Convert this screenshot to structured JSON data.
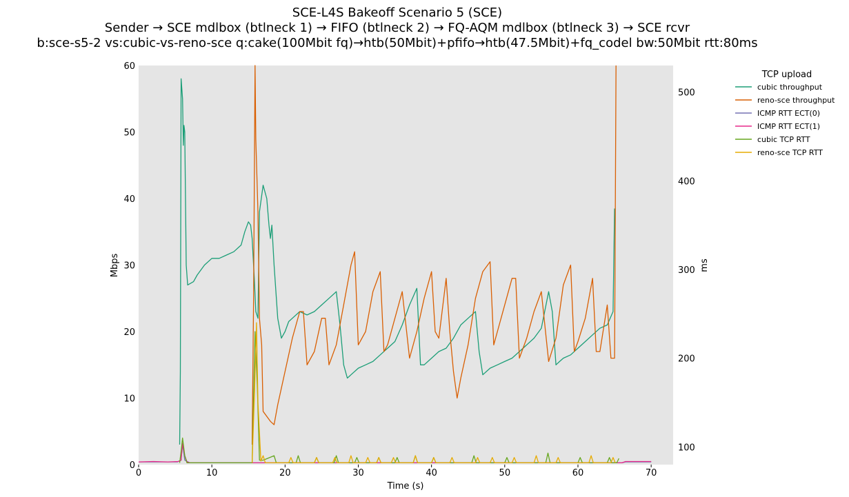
{
  "chart_data": {
    "type": "line",
    "title_lines": [
      "SCE-L4S Bakeoff Scenario 5 (SCE)",
      "Sender → SCE mdlbox (btlneck 1) → FIFO (btlneck 2) → FQ-AQM mdlbox (btlneck 3) → SCE rcvr",
      "b:sce-s5-2 vs:cubic-vs-reno-sce q:cake(100Mbit fq)→htb(50Mbit)+pfifo→htb(47.5Mbit)+fq_codel bw:50Mbit rtt:80ms"
    ],
    "xlabel": "Time (s)",
    "ylabel_left": "Mbps",
    "ylabel_right": "ms",
    "xlim": [
      0,
      73
    ],
    "ylim_left": [
      0,
      60
    ],
    "ylim_right": [
      80,
      530
    ],
    "x_ticks": [
      "0",
      "10",
      "20",
      "30",
      "40",
      "50",
      "60",
      "70"
    ],
    "y_ticks_left": [
      "0",
      "10",
      "20",
      "30",
      "40",
      "50",
      "60"
    ],
    "y_ticks_right": [
      "100",
      "200",
      "300",
      "400",
      "500"
    ],
    "grid": false,
    "legend": {
      "title": "TCP upload",
      "placement": "outside-right"
    },
    "series": [
      {
        "name": "cubic throughput",
        "axis": "left",
        "color": "#1b9e77",
        "points": [
          [
            5.6,
            3
          ],
          [
            5.7,
            14
          ],
          [
            5.8,
            58
          ],
          [
            6.0,
            55
          ],
          [
            6.1,
            48
          ],
          [
            6.2,
            51
          ],
          [
            6.3,
            50
          ],
          [
            6.5,
            30
          ],
          [
            6.7,
            27
          ],
          [
            7.5,
            27.5
          ],
          [
            8,
            28.5
          ],
          [
            9,
            30
          ],
          [
            10,
            31
          ],
          [
            11,
            31
          ],
          [
            12,
            31.5
          ],
          [
            13,
            32
          ],
          [
            14,
            33
          ],
          [
            14.5,
            35
          ],
          [
            15,
            36.5
          ],
          [
            15.3,
            36
          ],
          [
            15.5,
            34
          ],
          [
            15.8,
            28
          ],
          [
            16.0,
            23
          ],
          [
            16.3,
            22
          ],
          [
            16.5,
            38
          ],
          [
            17,
            42
          ],
          [
            17.5,
            40
          ],
          [
            17.8,
            36
          ],
          [
            18,
            34
          ],
          [
            18.2,
            36
          ],
          [
            18.5,
            30
          ],
          [
            19,
            22
          ],
          [
            19.5,
            19
          ],
          [
            20,
            20
          ],
          [
            20.5,
            21.5
          ],
          [
            21,
            22
          ],
          [
            22,
            23
          ],
          [
            23,
            22.5
          ],
          [
            24,
            23
          ],
          [
            25,
            24
          ],
          [
            26,
            25
          ],
          [
            27,
            26
          ],
          [
            27.5,
            21
          ],
          [
            28,
            15
          ],
          [
            28.5,
            13
          ],
          [
            29,
            13.5
          ],
          [
            30,
            14.5
          ],
          [
            31,
            15
          ],
          [
            32,
            15.5
          ],
          [
            33,
            16.5
          ],
          [
            34,
            17.5
          ],
          [
            35,
            18.5
          ],
          [
            36,
            21
          ],
          [
            37,
            24
          ],
          [
            38,
            26.5
          ],
          [
            38.5,
            15
          ],
          [
            39,
            15
          ],
          [
            40,
            16
          ],
          [
            41,
            17
          ],
          [
            42,
            17.5
          ],
          [
            43,
            19
          ],
          [
            44,
            21
          ],
          [
            45,
            22
          ],
          [
            46,
            23
          ],
          [
            46.5,
            17
          ],
          [
            47,
            13.5
          ],
          [
            48,
            14.5
          ],
          [
            49,
            15
          ],
          [
            50,
            15.5
          ],
          [
            51,
            16
          ],
          [
            52,
            17
          ],
          [
            53,
            18
          ],
          [
            54,
            19
          ],
          [
            55,
            20.5
          ],
          [
            56,
            26
          ],
          [
            56.5,
            23
          ],
          [
            57,
            15
          ],
          [
            57.5,
            15.5
          ],
          [
            58,
            16
          ],
          [
            59,
            16.5
          ],
          [
            60,
            17.5
          ],
          [
            61,
            18.5
          ],
          [
            62,
            19.5
          ],
          [
            63,
            20.5
          ],
          [
            64,
            21
          ],
          [
            64.8,
            23
          ],
          [
            65.0,
            38.5
          ]
        ]
      },
      {
        "name": "reno-sce throughput",
        "axis": "left",
        "color": "#d95f02",
        "points": [
          [
            15.5,
            3
          ],
          [
            15.7,
            25
          ],
          [
            15.9,
            60
          ],
          [
            16.0,
            49
          ],
          [
            16.3,
            38
          ],
          [
            16.5,
            22
          ],
          [
            16.8,
            18
          ],
          [
            17,
            8
          ],
          [
            18,
            6.5
          ],
          [
            18.5,
            6
          ],
          [
            19,
            9
          ],
          [
            20,
            14
          ],
          [
            21,
            19
          ],
          [
            22,
            23
          ],
          [
            22.5,
            23
          ],
          [
            23,
            15
          ],
          [
            24,
            17
          ],
          [
            25,
            22
          ],
          [
            25.5,
            22
          ],
          [
            26,
            15
          ],
          [
            27,
            18
          ],
          [
            28,
            24
          ],
          [
            29,
            30
          ],
          [
            29.5,
            32
          ],
          [
            30,
            18
          ],
          [
            31,
            20
          ],
          [
            32,
            26
          ],
          [
            33,
            29
          ],
          [
            33.5,
            17
          ],
          [
            34,
            18
          ],
          [
            35,
            22
          ],
          [
            36,
            26
          ],
          [
            37,
            16
          ],
          [
            38,
            20
          ],
          [
            39,
            25
          ],
          [
            40,
            29
          ],
          [
            40.5,
            20
          ],
          [
            41,
            19
          ],
          [
            42,
            28
          ],
          [
            42.5,
            20
          ],
          [
            43,
            14
          ],
          [
            43.5,
            10
          ],
          [
            44,
            13
          ],
          [
            45,
            18
          ],
          [
            46,
            25
          ],
          [
            47,
            29
          ],
          [
            48,
            30.5
          ],
          [
            48.5,
            18
          ],
          [
            49,
            20
          ],
          [
            50,
            24
          ],
          [
            51,
            28
          ],
          [
            51.5,
            28
          ],
          [
            52,
            16
          ],
          [
            53,
            19
          ],
          [
            54,
            23
          ],
          [
            55,
            26
          ],
          [
            56,
            15.5
          ],
          [
            57,
            19
          ],
          [
            58,
            27
          ],
          [
            59,
            30
          ],
          [
            59.5,
            17
          ],
          [
            60,
            18.5
          ],
          [
            61,
            22
          ],
          [
            62,
            28
          ],
          [
            62.5,
            17
          ],
          [
            63,
            17
          ],
          [
            64,
            24
          ],
          [
            64.5,
            16
          ],
          [
            65.0,
            16
          ],
          [
            65.2,
            60
          ]
        ]
      },
      {
        "name": "ICMP RTT ECT(0)",
        "axis": "right",
        "color": "#7570b3",
        "points": [
          [
            0,
            83
          ],
          [
            5.3,
            83
          ],
          [
            5.8,
            85
          ],
          [
            6.0,
            103
          ],
          [
            6.3,
            85
          ],
          [
            7,
            82
          ],
          [
            15.5,
            82
          ],
          [
            16,
            82
          ],
          [
            20,
            82
          ],
          [
            30,
            82
          ],
          [
            40,
            82
          ],
          [
            50,
            82
          ],
          [
            60,
            82
          ],
          [
            66,
            82
          ],
          [
            66.5,
            83
          ],
          [
            70,
            83
          ]
        ]
      },
      {
        "name": "ICMP RTT ECT(1)",
        "axis": "right",
        "color": "#e7298a",
        "points": [
          [
            0,
            83
          ],
          [
            2,
            83.5
          ],
          [
            4,
            83
          ],
          [
            5.4,
            83.5
          ],
          [
            5.8,
            85
          ],
          [
            6.0,
            104
          ],
          [
            6.3,
            90
          ],
          [
            6.6,
            83
          ],
          [
            7,
            82
          ],
          [
            10,
            82
          ],
          [
            15.5,
            82
          ],
          [
            16,
            82
          ],
          [
            20,
            82
          ],
          [
            30,
            82
          ],
          [
            40,
            82
          ],
          [
            50,
            82
          ],
          [
            60,
            82
          ],
          [
            66,
            82
          ],
          [
            66.5,
            83.5
          ],
          [
            70,
            83.5
          ]
        ]
      },
      {
        "name": "cubic TCP RTT",
        "axis": "right",
        "color": "#66a61e",
        "points": [
          [
            5.6,
            82
          ],
          [
            5.8,
            95
          ],
          [
            6.0,
            110
          ],
          [
            6.3,
            90
          ],
          [
            6.6,
            82
          ],
          [
            15.5,
            82
          ],
          [
            15.9,
            230
          ],
          [
            16.2,
            170
          ],
          [
            16.5,
            85
          ],
          [
            17,
            85
          ],
          [
            18.5,
            90
          ],
          [
            18.8,
            82
          ],
          [
            21.5,
            82
          ],
          [
            21.8,
            90
          ],
          [
            22.1,
            82
          ],
          [
            24,
            82
          ],
          [
            24.3,
            88
          ],
          [
            24.6,
            82
          ],
          [
            26.7,
            82
          ],
          [
            27,
            90
          ],
          [
            27.3,
            82
          ],
          [
            29.5,
            82
          ],
          [
            29.8,
            88
          ],
          [
            30.1,
            82
          ],
          [
            32.5,
            82
          ],
          [
            32.8,
            88
          ],
          [
            33.1,
            82
          ],
          [
            35,
            82
          ],
          [
            35.3,
            88
          ],
          [
            35.6,
            82
          ],
          [
            37.5,
            82
          ],
          [
            37.8,
            90
          ],
          [
            38.1,
            82
          ],
          [
            40,
            82
          ],
          [
            40.3,
            88
          ],
          [
            40.6,
            82
          ],
          [
            45.5,
            82
          ],
          [
            45.8,
            90
          ],
          [
            46.1,
            82
          ],
          [
            50,
            82
          ],
          [
            50.3,
            88
          ],
          [
            50.6,
            82
          ],
          [
            55.6,
            82
          ],
          [
            55.9,
            93
          ],
          [
            56.2,
            82
          ],
          [
            60,
            82
          ],
          [
            60.3,
            88
          ],
          [
            60.6,
            82
          ],
          [
            64,
            82
          ],
          [
            64.3,
            88
          ],
          [
            64.6,
            82
          ],
          [
            65.3,
            82
          ],
          [
            65.6,
            87
          ]
        ]
      },
      {
        "name": "reno-sce TCP RTT",
        "axis": "right",
        "color": "#e6ab02",
        "points": [
          [
            15.5,
            82
          ],
          [
            15.9,
            180
          ],
          [
            16.1,
            240
          ],
          [
            16.3,
            150
          ],
          [
            16.7,
            84
          ],
          [
            17,
            90
          ],
          [
            17.3,
            82
          ],
          [
            20.5,
            82
          ],
          [
            20.8,
            88
          ],
          [
            21.1,
            82
          ],
          [
            24,
            82
          ],
          [
            24.3,
            88
          ],
          [
            24.6,
            82
          ],
          [
            26.5,
            82
          ],
          [
            26.8,
            88
          ],
          [
            27.1,
            82
          ],
          [
            28.7,
            82
          ],
          [
            29,
            90
          ],
          [
            29.3,
            82
          ],
          [
            31,
            82
          ],
          [
            31.3,
            88
          ],
          [
            31.6,
            82
          ],
          [
            32.5,
            82
          ],
          [
            32.8,
            88
          ],
          [
            33.1,
            82
          ],
          [
            34.5,
            82
          ],
          [
            34.8,
            88
          ],
          [
            35.1,
            82
          ],
          [
            37.5,
            82
          ],
          [
            37.8,
            90
          ],
          [
            38.1,
            82
          ],
          [
            40,
            82
          ],
          [
            40.3,
            88
          ],
          [
            40.6,
            82
          ],
          [
            42.5,
            82
          ],
          [
            42.8,
            88
          ],
          [
            43.1,
            82
          ],
          [
            46,
            82
          ],
          [
            46.3,
            88
          ],
          [
            46.6,
            82
          ],
          [
            48,
            82
          ],
          [
            48.3,
            88
          ],
          [
            48.6,
            82
          ],
          [
            51,
            82
          ],
          [
            51.3,
            88
          ],
          [
            51.6,
            82
          ],
          [
            54,
            82
          ],
          [
            54.3,
            90
          ],
          [
            54.6,
            82
          ],
          [
            57,
            82
          ],
          [
            57.3,
            88
          ],
          [
            57.6,
            82
          ],
          [
            61.5,
            82
          ],
          [
            61.8,
            90
          ],
          [
            62.1,
            82
          ],
          [
            64.5,
            82
          ],
          [
            64.8,
            88
          ],
          [
            65.1,
            82
          ]
        ]
      }
    ]
  }
}
